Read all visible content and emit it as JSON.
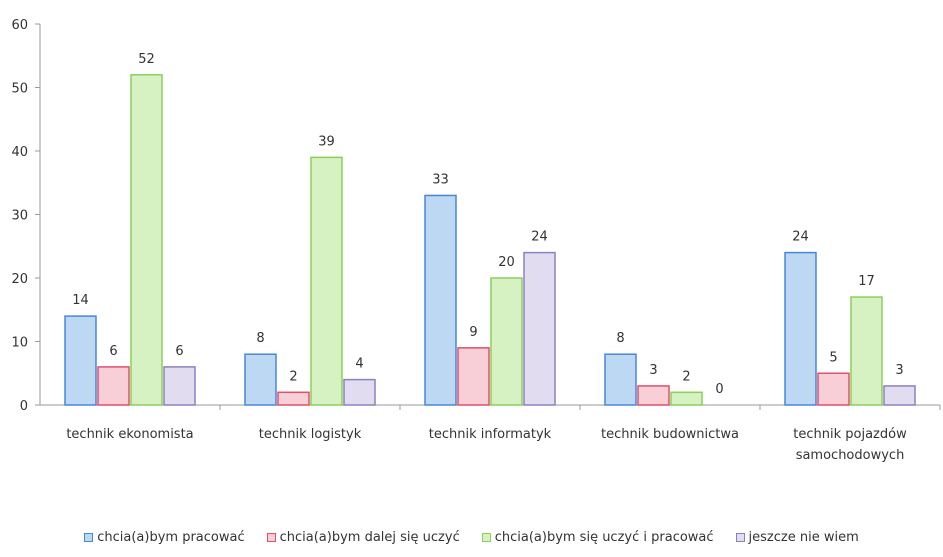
{
  "chart_data": {
    "type": "bar",
    "categories": [
      [
        "technik ekonomista"
      ],
      [
        "technik logistyk"
      ],
      [
        "technik informatyk"
      ],
      [
        "technik budownictwa"
      ],
      [
        "technik pojazdów",
        "samochodowych"
      ]
    ],
    "series": [
      {
        "name": "chcia(a)bym pracować",
        "values": [
          14,
          8,
          33,
          8,
          24
        ],
        "color": "#bcd8f3",
        "stroke": "#4a86d8"
      },
      {
        "name": "chcia(a)bym dalej się uczyć",
        "values": [
          6,
          2,
          9,
          3,
          5
        ],
        "color": "#f8cfd7",
        "stroke": "#e0506a"
      },
      {
        "name": "chcia(a)bym się uczyć i pracować",
        "values": [
          52,
          39,
          20,
          2,
          17
        ],
        "color": "#d6f2c2",
        "stroke": "#8ccf5a"
      },
      {
        "name": "jeszcze nie wiem",
        "values": [
          6,
          4,
          24,
          0,
          3
        ],
        "color": "#e2dcf0",
        "stroke": "#8e80c0"
      }
    ],
    "ylim": [
      0,
      60
    ],
    "yticks": [
      0,
      10,
      20,
      30,
      40,
      50,
      60
    ],
    "legend_position": "bottom",
    "grid": false
  }
}
